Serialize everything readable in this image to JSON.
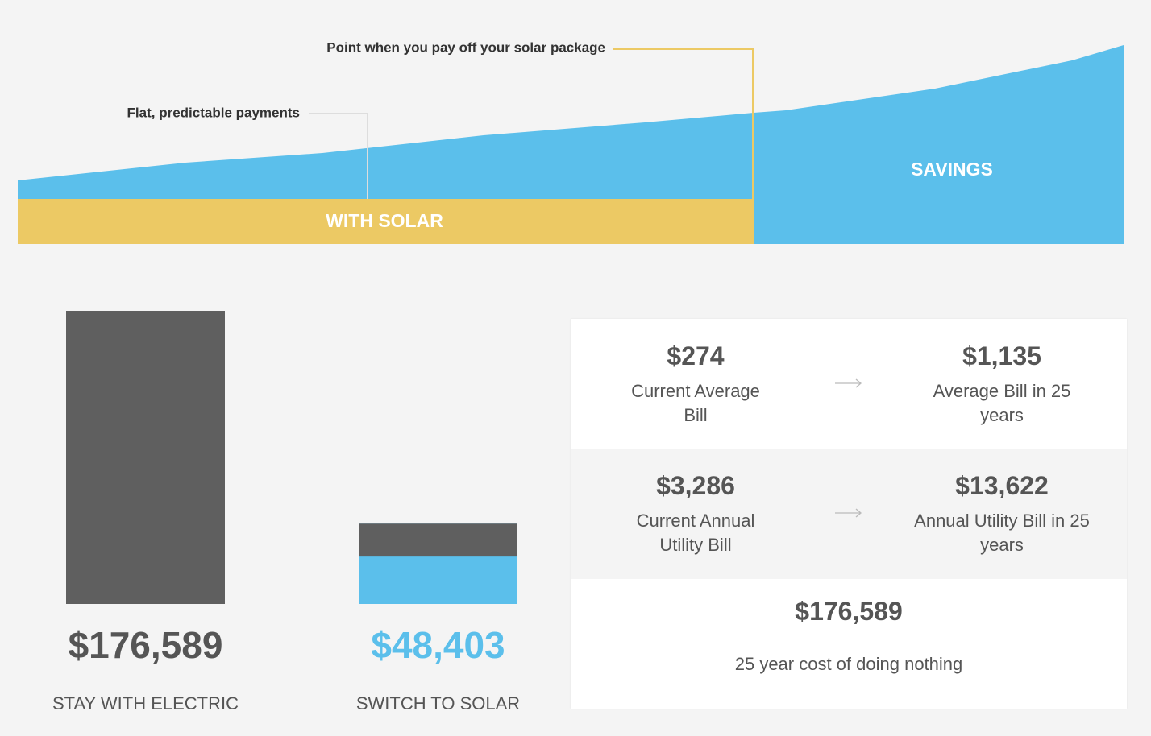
{
  "annotations": {
    "payoff": "Point when you pay off your solar package",
    "flat": "Flat, predictable payments"
  },
  "area_labels": {
    "with_solar": "WITH SOLAR",
    "savings": "SAVINGS"
  },
  "chart_data": {
    "type": "bar",
    "categories": [
      "STAY WITH ELECTRIC",
      "SWITCH TO SOLAR"
    ],
    "values": [
      176589,
      48403
    ],
    "value_labels": [
      "$176,589",
      "$48,403"
    ],
    "colors": [
      "#5f5f5f",
      "#5bbfeb"
    ]
  },
  "summary": {
    "rows": [
      [
        {
          "value": "$274",
          "label": "Current Average Bill"
        },
        {
          "value": "$1,135",
          "label": "Average Bill in 25 years"
        }
      ],
      [
        {
          "value": "$3,286",
          "label": "Current Annual Utility Bill"
        },
        {
          "value": "$13,622",
          "label": "Annual Utility Bill in 25 years"
        }
      ]
    ],
    "total": {
      "value": "$176,589",
      "label": "25 year cost of doing nothing"
    }
  }
}
